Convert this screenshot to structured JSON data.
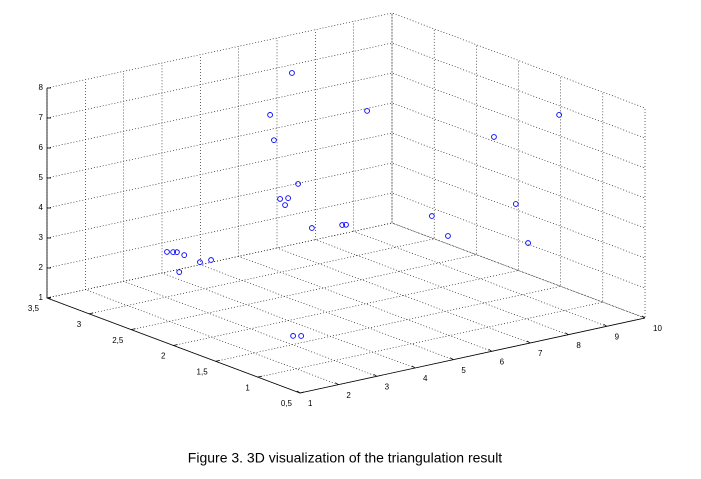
{
  "chart_data": {
    "type": "scatter3d",
    "caption": "Figure 3. 3D visualization of the triangulation result",
    "x": [
      6.29,
      5.72,
      5.82,
      8.25,
      5.35,
      4.88,
      5.09,
      5.01,
      5.71,
      6.5,
      6.6,
      3.03,
      3.19,
      3.29,
      3.48,
      3.89,
      4.18,
      3.35,
      1.92,
      2.13,
      8.84,
      9.26,
      9.36,
      8.86,
      8.83,
      9.15
    ],
    "y": [
      3,
      3,
      3,
      3,
      2.5,
      2.5,
      2.5,
      2.5,
      2.5,
      2.5,
      2.5,
      3,
      3,
      3,
      3,
      3,
      3,
      3,
      1,
      1,
      2.5,
      2.5,
      2,
      1,
      1.5,
      1.5
    ],
    "z": [
      7.56,
      6.32,
      5.45,
      5.75,
      4.65,
      4.28,
      4.25,
      4.04,
      3.08,
      2.96,
      2.94,
      2.5,
      2.45,
      2.42,
      2.27,
      1.92,
      1.91,
      1.74,
      2.12,
      2.06,
      2.61,
      1.83,
      5.63,
      7.56,
      4.07,
      2.68
    ],
    "color": "#0000ff",
    "xlim": [
      1,
      10
    ],
    "xticks": [
      1,
      2,
      3,
      4,
      5,
      6,
      7,
      8,
      9,
      10
    ],
    "ylim": [
      0.5,
      3.5
    ],
    "yticks": [
      {
        "value": 0.5,
        "label": "0,5"
      },
      1,
      {
        "value": 1.5,
        "label": "1,5"
      },
      2,
      {
        "value": 2.5,
        "label": "2,5"
      },
      3,
      {
        "value": 3.5,
        "label": "3,5"
      }
    ],
    "zlim": [
      1,
      8
    ],
    "zticks": [
      1,
      2,
      3,
      4,
      5,
      6,
      7,
      8
    ],
    "grid": true
  }
}
